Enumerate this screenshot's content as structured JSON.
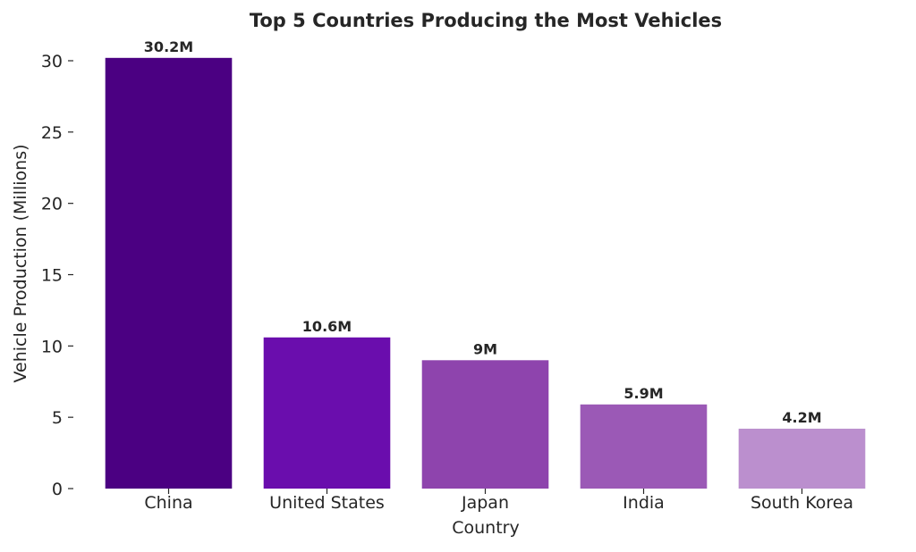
{
  "chart_data": {
    "type": "bar",
    "title": "Top 5 Countries Producing the Most Vehicles",
    "xlabel": "Country",
    "ylabel": "Vehicle Production (Millions)",
    "categories": [
      "China",
      "United States",
      "Japan",
      "India",
      "South Korea"
    ],
    "values": [
      30.2,
      10.6,
      9,
      5.9,
      4.2
    ],
    "data_labels": [
      "30.2M",
      "10.6M",
      "9M",
      "5.9M",
      "4.2M"
    ],
    "colors": [
      "#4b0082",
      "#6a0dad",
      "#8e44ad",
      "#9b59b6",
      "#bb8fce"
    ],
    "yticks": [
      0,
      5,
      10,
      15,
      20,
      25,
      30
    ],
    "ylim": [
      0,
      30
    ],
    "grid": false,
    "legend": "none"
  }
}
